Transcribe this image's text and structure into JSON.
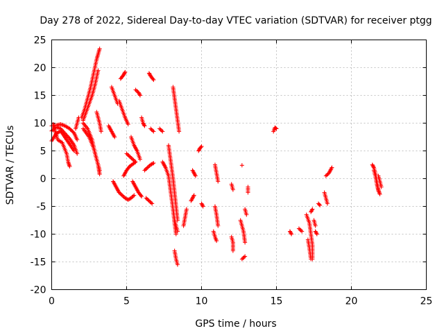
{
  "chart_data": {
    "type": "scatter",
    "title": "Day 278 of 2022, Sidereal Day-to-day VTEC variation (SDTVAR) for receiver ptgg",
    "xlabel": "GPS time / hours",
    "ylabel": "SDTVAR / TECUs",
    "xlim": [
      0,
      25
    ],
    "ylim": [
      -20,
      25
    ],
    "xticks": [
      0,
      5,
      10,
      15,
      20,
      25
    ],
    "yticks": [
      -20,
      -15,
      -10,
      -5,
      0,
      5,
      10,
      15,
      20,
      25
    ],
    "grid": true,
    "marker": "+",
    "series": [
      {
        "name": "SDTVAR",
        "color": "#ff0000",
        "segments": [
          [
            [
              0.0,
              9.5
            ],
            [
              0.3,
              9.6
            ],
            [
              0.6,
              9.8
            ],
            [
              0.9,
              9.5
            ],
            [
              1.2,
              9.0
            ],
            [
              1.5,
              8.2
            ],
            [
              1.7,
              7.0
            ]
          ],
          [
            [
              0.0,
              8.6
            ],
            [
              0.3,
              9.3
            ],
            [
              0.6,
              9.0
            ],
            [
              0.9,
              8.1
            ],
            [
              1.2,
              7.2
            ],
            [
              1.5,
              6.0
            ],
            [
              1.7,
              4.5
            ]
          ],
          [
            [
              0.0,
              6.8
            ],
            [
              0.3,
              8.1
            ],
            [
              0.6,
              8.6
            ],
            [
              0.9,
              7.4
            ],
            [
              1.2,
              6.2
            ],
            [
              1.5,
              5.0
            ]
          ],
          [
            [
              0.1,
              9.8
            ],
            [
              0.4,
              7.0
            ],
            [
              0.7,
              6.5
            ],
            [
              1.0,
              4.5
            ],
            [
              1.1,
              3.0
            ],
            [
              1.2,
              2.2
            ]
          ],
          [
            [
              1.6,
              9.0
            ],
            [
              1.7,
              10.0
            ],
            [
              1.8,
              11.0
            ]
          ],
          [
            [
              2.0,
              11.0
            ],
            [
              2.2,
              12.5
            ],
            [
              2.4,
              14.5
            ],
            [
              2.6,
              16.5
            ],
            [
              2.8,
              19.0
            ],
            [
              3.0,
              21.5
            ],
            [
              3.2,
              23.4
            ]
          ],
          [
            [
              2.1,
              10.5
            ],
            [
              2.3,
              12.0
            ],
            [
              2.5,
              13.5
            ],
            [
              2.7,
              15.0
            ],
            [
              2.9,
              17.0
            ],
            [
              3.1,
              19.5
            ]
          ],
          [
            [
              2.1,
              10.0
            ],
            [
              2.4,
              9.0
            ],
            [
              2.7,
              7.0
            ],
            [
              2.9,
              4.5
            ],
            [
              3.1,
              2.5
            ],
            [
              3.2,
              0.8
            ]
          ],
          [
            [
              2.1,
              9.0
            ],
            [
              2.5,
              7.5
            ],
            [
              2.8,
              5.5
            ],
            [
              3.0,
              3.5
            ],
            [
              3.2,
              1.5
            ]
          ],
          [
            [
              3.0,
              12.0
            ],
            [
              3.2,
              10.0
            ],
            [
              3.3,
              8.5
            ]
          ],
          [
            [
              3.8,
              9.5
            ],
            [
              4.0,
              8.5
            ],
            [
              4.2,
              7.5
            ]
          ],
          [
            [
              4.0,
              16.5
            ],
            [
              4.2,
              15.0
            ],
            [
              4.4,
              13.5
            ]
          ],
          [
            [
              4.6,
              18.0
            ],
            [
              4.8,
              18.7
            ],
            [
              4.9,
              19.2
            ]
          ],
          [
            [
              4.5,
              14.0
            ],
            [
              4.7,
              12.5
            ],
            [
              4.9,
              11.0
            ],
            [
              5.1,
              9.8
            ]
          ],
          [
            [
              4.1,
              -0.5
            ],
            [
              4.3,
              -1.5
            ],
            [
              4.5,
              -2.5
            ],
            [
              4.7,
              -3.0
            ],
            [
              4.9,
              -3.5
            ],
            [
              5.1,
              -3.8
            ],
            [
              5.3,
              -3.5
            ],
            [
              5.5,
              -3.0
            ]
          ],
          [
            [
              4.8,
              0.5
            ],
            [
              5.0,
              1.5
            ],
            [
              5.2,
              2.2
            ],
            [
              5.4,
              2.6
            ],
            [
              5.6,
              3.0
            ]
          ],
          [
            [
              5.0,
              4.5
            ],
            [
              5.2,
              4.0
            ],
            [
              5.4,
              3.5
            ],
            [
              5.6,
              3.0
            ]
          ],
          [
            [
              5.3,
              7.5
            ],
            [
              5.5,
              6.0
            ],
            [
              5.7,
              5.0
            ],
            [
              5.9,
              3.5
            ]
          ],
          [
            [
              5.4,
              -0.5
            ],
            [
              5.6,
              -1.5
            ],
            [
              5.8,
              -2.5
            ],
            [
              6.0,
              -3.2
            ]
          ],
          [
            [
              5.6,
              16.0
            ],
            [
              5.8,
              15.5
            ],
            [
              5.9,
              15.0
            ]
          ],
          [
            [
              6.0,
              11.0
            ],
            [
              6.1,
              10.0
            ],
            [
              6.2,
              9.5
            ]
          ],
          [
            [
              6.2,
              1.5
            ],
            [
              6.4,
              2.0
            ],
            [
              6.6,
              2.5
            ],
            [
              6.8,
              2.8
            ]
          ],
          [
            [
              6.5,
              19.0
            ],
            [
              6.6,
              18.5
            ],
            [
              6.8,
              17.8
            ]
          ],
          [
            [
              6.6,
              9.0
            ],
            [
              6.8,
              8.5
            ]
          ],
          [
            [
              6.3,
              -3.5
            ],
            [
              6.5,
              -4.0
            ],
            [
              6.7,
              -4.5
            ]
          ],
          [
            [
              7.2,
              9.0
            ],
            [
              7.4,
              8.5
            ]
          ],
          [
            [
              7.4,
              3.0
            ],
            [
              7.6,
              2.0
            ],
            [
              7.8,
              0.5
            ],
            [
              7.9,
              -1.5
            ],
            [
              8.0,
              -3.5
            ],
            [
              8.1,
              -5.5
            ],
            [
              8.2,
              -7.5
            ],
            [
              8.4,
              -9.5
            ]
          ],
          [
            [
              7.8,
              6.0
            ],
            [
              7.9,
              4.0
            ],
            [
              8.0,
              2.0
            ],
            [
              8.1,
              0.0
            ],
            [
              8.2,
              -2.5
            ],
            [
              8.3,
              -5.0
            ],
            [
              8.4,
              -7.5
            ]
          ],
          [
            [
              8.1,
              16.5
            ],
            [
              8.2,
              14.5
            ],
            [
              8.3,
              12.5
            ],
            [
              8.4,
              10.5
            ],
            [
              8.5,
              8.5
            ]
          ],
          [
            [
              8.1,
              -5.5
            ],
            [
              8.2,
              -8.0
            ],
            [
              8.3,
              -10.0
            ]
          ],
          [
            [
              8.2,
              -13.0
            ],
            [
              8.3,
              -14.5
            ],
            [
              8.4,
              -15.5
            ]
          ],
          [
            [
              8.8,
              -8.5
            ],
            [
              8.9,
              -7.0
            ],
            [
              9.0,
              -5.5
            ]
          ],
          [
            [
              9.4,
              1.5
            ],
            [
              9.6,
              0.5
            ]
          ],
          [
            [
              9.8,
              5.0
            ],
            [
              9.9,
              5.5
            ],
            [
              10.0,
              5.8
            ]
          ],
          [
            [
              9.3,
              -4.0
            ],
            [
              9.5,
              -3.0
            ]
          ],
          [
            [
              10.0,
              -4.5
            ],
            [
              10.1,
              -5.0
            ]
          ],
          [
            [
              10.9,
              2.5
            ],
            [
              11.0,
              1.0
            ],
            [
              11.1,
              -0.5
            ]
          ],
          [
            [
              10.9,
              -5.0
            ],
            [
              11.0,
              -6.5
            ],
            [
              11.1,
              -8.5
            ]
          ],
          [
            [
              10.8,
              -9.5
            ],
            [
              10.9,
              -10.5
            ],
            [
              11.0,
              -11.2
            ]
          ],
          [
            [
              12.0,
              -1.0
            ],
            [
              12.1,
              -2.0
            ]
          ],
          [
            [
              12.0,
              -10.5
            ],
            [
              12.1,
              -11.5
            ],
            [
              12.1,
              -13.0
            ]
          ],
          [
            [
              12.6,
              -7.5
            ],
            [
              12.7,
              -8.5
            ],
            [
              12.8,
              -9.5
            ],
            [
              12.9,
              -11.5
            ]
          ],
          [
            [
              12.7,
              -14.5
            ],
            [
              12.9,
              -14.0
            ]
          ],
          [
            [
              12.9,
              -5.5
            ],
            [
              13.0,
              -6.5
            ]
          ],
          [
            [
              13.1,
              -1.5
            ],
            [
              13.1,
              -2.5
            ]
          ],
          [
            [
              12.7,
              2.4
            ]
          ],
          [
            [
              14.8,
              8.5
            ],
            [
              14.9,
              9.2
            ],
            [
              15.0,
              9.0
            ]
          ],
          [
            [
              15.9,
              -9.5
            ],
            [
              16.0,
              -10.0
            ]
          ],
          [
            [
              16.5,
              -9.0
            ],
            [
              16.7,
              -9.5
            ]
          ],
          [
            [
              17.0,
              -6.5
            ],
            [
              17.2,
              -8.0
            ],
            [
              17.3,
              -10.0
            ],
            [
              17.4,
              -12.0
            ],
            [
              17.4,
              -14.5
            ]
          ],
          [
            [
              17.1,
              -11.0
            ],
            [
              17.2,
              -12.5
            ],
            [
              17.3,
              -14.5
            ]
          ],
          [
            [
              17.3,
              -6.0
            ],
            [
              17.4,
              -5.5
            ]
          ],
          [
            [
              17.5,
              -7.5
            ],
            [
              17.6,
              -8.5
            ]
          ],
          [
            [
              17.6,
              -9.5
            ],
            [
              17.7,
              -10.0
            ]
          ],
          [
            [
              17.8,
              -4.5
            ],
            [
              17.9,
              -4.8
            ]
          ],
          [
            [
              18.3,
              0.5
            ],
            [
              18.5,
              1.0
            ],
            [
              18.7,
              2.0
            ]
          ],
          [
            [
              18.2,
              -2.5
            ],
            [
              18.3,
              -3.5
            ],
            [
              18.4,
              -4.5
            ]
          ],
          [
            [
              21.4,
              2.5
            ],
            [
              21.5,
              2.0
            ],
            [
              21.6,
              1.0
            ],
            [
              21.7,
              -0.5
            ],
            [
              21.8,
              -2.0
            ],
            [
              21.9,
              -2.8
            ]
          ],
          [
            [
              21.5,
              1.5
            ],
            [
              21.6,
              0.5
            ],
            [
              21.7,
              -1.0
            ],
            [
              21.8,
              -2.2
            ]
          ],
          [
            [
              21.8,
              0.5
            ],
            [
              21.9,
              -0.5
            ],
            [
              22.0,
              -1.5
            ]
          ]
        ]
      }
    ]
  }
}
